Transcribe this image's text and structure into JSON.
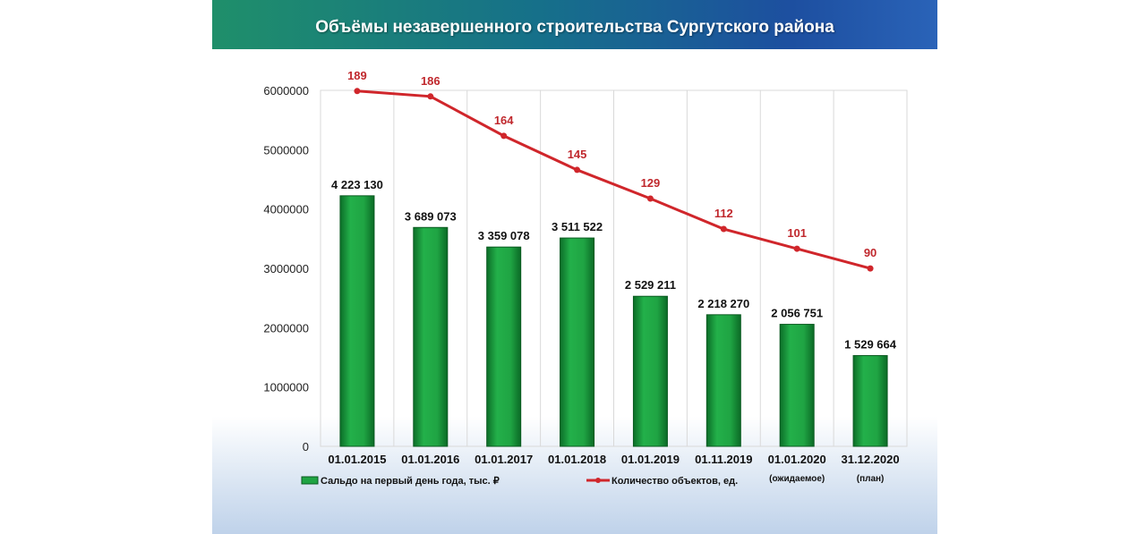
{
  "title": "Объёмы незавершенного строительства Сургутского района",
  "chart_data": {
    "type": "bar+line",
    "title": "Объёмы незавершенного строительства Сургутского района",
    "categories": [
      "01.01.2015",
      "01.01.2016",
      "01.01.2017",
      "01.01.2018",
      "01.01.2019",
      "01.11.2019",
      "01.01.2020",
      "31.12.2020"
    ],
    "category_notes": [
      "",
      "",
      "",
      "",
      "",
      "",
      "(ожидаемое)",
      "(план)"
    ],
    "y_ticks": [
      "0",
      "1000000",
      "2000000",
      "3000000",
      "4000000",
      "5000000",
      "6000000"
    ],
    "ylim": [
      0,
      6000000
    ],
    "y2lim": [
      -9.3,
      189.4
    ],
    "series": [
      {
        "name": "Сальдо на первый день года, тыс. ₽",
        "type": "bar",
        "color": "#1a9a3c",
        "values": [
          4223130,
          3689073,
          3359078,
          3511522,
          2529211,
          2218270,
          2056751,
          1529664
        ],
        "labels": [
          "4 223 130",
          "3 689 073",
          "3 359 078",
          "3 511 522",
          "2 529 211",
          "2 218 270",
          "2 056 751",
          "1 529 664"
        ]
      },
      {
        "name": "Количество объектов, ед.",
        "type": "line",
        "color": "#d0262b",
        "axis": "secondary",
        "values": [
          189,
          186,
          164,
          145,
          129,
          112,
          101,
          90
        ],
        "labels": [
          "189",
          "186",
          "164",
          "145",
          "129",
          "112",
          "101",
          "90"
        ]
      }
    ],
    "legend": "bottom",
    "grid": true
  }
}
